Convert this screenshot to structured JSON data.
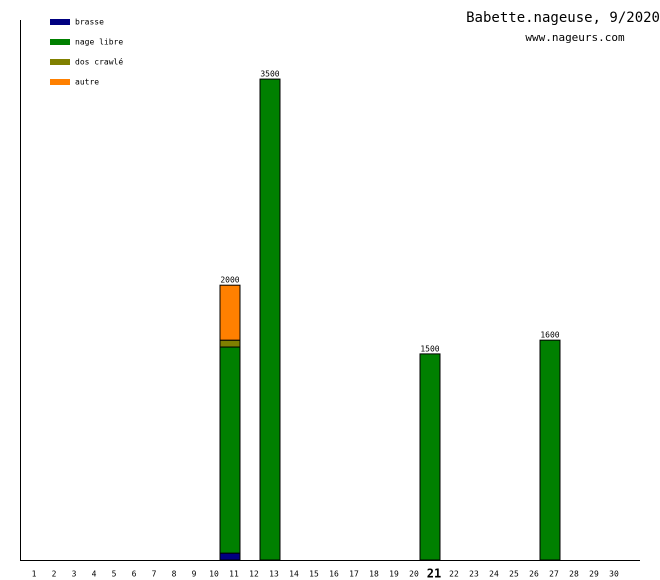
{
  "chart_data": {
    "type": "stacked_bar",
    "title": "Babette.nageuse, 9/2020",
    "subtitle": "www.nageurs.com",
    "categories": [
      "1",
      "2",
      "3",
      "4",
      "5",
      "6",
      "7",
      "8",
      "9",
      "10",
      "11",
      "12",
      "13",
      "14",
      "15",
      "16",
      "17",
      "18",
      "19",
      "20",
      "21",
      "22",
      "23",
      "24",
      "25",
      "26",
      "27",
      "28",
      "29",
      "30"
    ],
    "highlight_category": "21",
    "series": [
      {
        "name": "brasse",
        "color": "#000080",
        "values": [
          0,
          0,
          0,
          0,
          0,
          0,
          0,
          0,
          0,
          0,
          50,
          0,
          0,
          0,
          0,
          0,
          0,
          0,
          0,
          0,
          0,
          0,
          0,
          0,
          0,
          0,
          0,
          0,
          0,
          0
        ]
      },
      {
        "name": "nage libre",
        "color": "#008000",
        "values": [
          0,
          0,
          0,
          0,
          0,
          0,
          0,
          0,
          0,
          0,
          1500,
          0,
          3500,
          0,
          0,
          0,
          0,
          0,
          0,
          0,
          1500,
          0,
          0,
          0,
          0,
          0,
          1600,
          0,
          0,
          0
        ]
      },
      {
        "name": "dos crawlé",
        "color": "#808000",
        "values": [
          0,
          0,
          0,
          0,
          0,
          0,
          0,
          0,
          0,
          0,
          50,
          0,
          0,
          0,
          0,
          0,
          0,
          0,
          0,
          0,
          0,
          0,
          0,
          0,
          0,
          0,
          0,
          0,
          0,
          0
        ]
      },
      {
        "name": "autre",
        "color": "#ff8000",
        "values": [
          0,
          0,
          0,
          0,
          0,
          0,
          0,
          0,
          0,
          0,
          400,
          0,
          0,
          0,
          0,
          0,
          0,
          0,
          0,
          0,
          0,
          0,
          0,
          0,
          0,
          0,
          0,
          0,
          0,
          0
        ]
      }
    ],
    "totals": [
      null,
      null,
      null,
      null,
      null,
      null,
      null,
      null,
      null,
      null,
      2000,
      null,
      3500,
      null,
      null,
      null,
      null,
      null,
      null,
      null,
      1500,
      null,
      null,
      null,
      null,
      null,
      1600,
      null,
      null,
      null
    ],
    "ylim": [
      0,
      3930
    ]
  }
}
